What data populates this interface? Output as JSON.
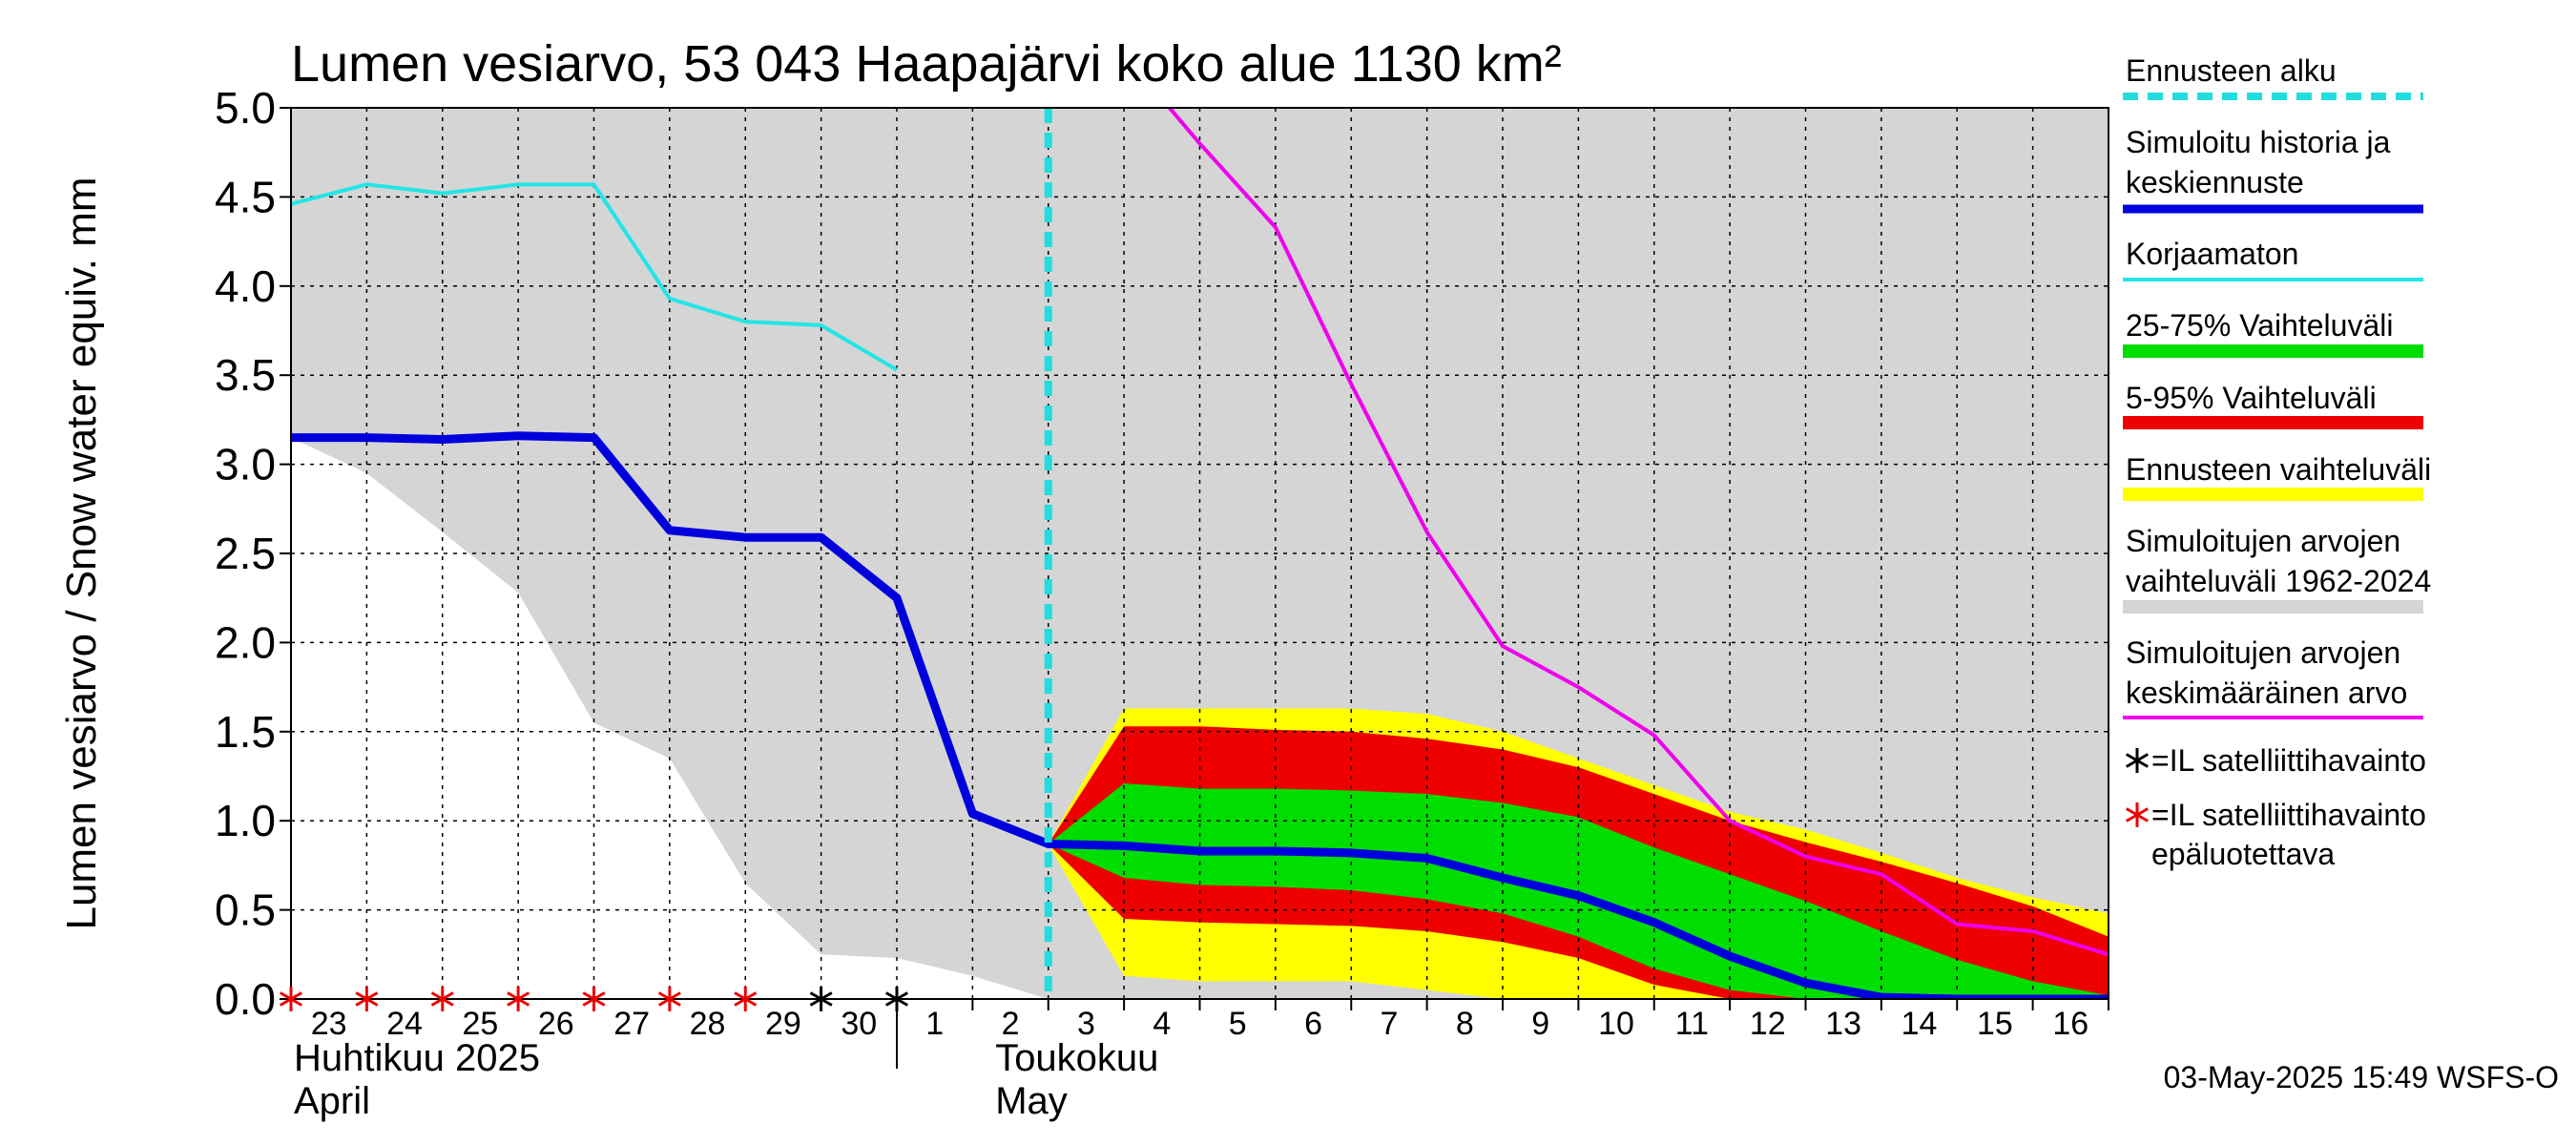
{
  "chart_data": {
    "type": "line",
    "title": "Lumen vesiarvo, 53 043 Haapajärvi koko alue 1130 km²",
    "ylabel": "Lumen vesiarvo / Snow water equiv.    mm",
    "ylim": [
      0,
      5
    ],
    "yticks": [
      "0.0",
      "0.5",
      "1.0",
      "1.5",
      "2.0",
      "2.5",
      "3.0",
      "3.5",
      "4.0",
      "4.5",
      "5.0"
    ],
    "xlim": [
      0,
      24
    ],
    "xtick_labels": [
      "23",
      "24",
      "25",
      "26",
      "27",
      "28",
      "29",
      "30",
      "1",
      "2",
      "3",
      "4",
      "5",
      "6",
      "7",
      "8",
      "9",
      "10",
      "11",
      "12",
      "13",
      "14",
      "15",
      "16"
    ],
    "month_labels": [
      {
        "line1": "Huhtikuu  2025",
        "line2": "April"
      },
      {
        "line1": "Toukokuu",
        "line2": "May"
      }
    ],
    "forecast_start_x": 10,
    "grid": true,
    "legend_position": "right",
    "footer": "03-May-2025 15:49 WSFS-O",
    "colors": {
      "forecast_start": "#22DDDD",
      "simulated": "#0000DD",
      "uncorrected": "#22E5E5",
      "p25_75": "#00DD00",
      "p5_95": "#EE0000",
      "forecast_range": "#FFFF00",
      "hist_range": "#D5D5D5",
      "hist_mean": "#EE00EE"
    },
    "legend": [
      {
        "lines": [
          "Ennusteen alku"
        ],
        "key": "forecast_start",
        "style": "dash"
      },
      {
        "lines": [
          "Simuloitu historia ja",
          "keskiennuste"
        ],
        "key": "simulated",
        "style": "thick"
      },
      {
        "lines": [
          "Korjaamaton"
        ],
        "key": "uncorrected",
        "style": "thin"
      },
      {
        "lines": [
          "25-75% Vaihteluväli"
        ],
        "key": "p25_75",
        "style": "band"
      },
      {
        "lines": [
          "5-95% Vaihteluväli"
        ],
        "key": "p5_95",
        "style": "band"
      },
      {
        "lines": [
          "Ennusteen vaihteluväli"
        ],
        "key": "forecast_range",
        "style": "band"
      },
      {
        "lines": [
          "Simuloitujen arvojen",
          "vaihteluväli 1962-2024"
        ],
        "key": "hist_range",
        "style": "band"
      },
      {
        "lines": [
          "Simuloitujen arvojen",
          "keskimääräinen arvo"
        ],
        "key": "hist_mean",
        "style": "thin"
      },
      {
        "lines": [
          "=IL satelliittihavainto"
        ],
        "key": "sat_black",
        "style": "star",
        "color": "#000000"
      },
      {
        "lines": [
          "=IL satelliittihavainto",
          "epäluotettava"
        ],
        "key": "sat_red",
        "style": "star",
        "color": "#EE0000"
      }
    ],
    "series": {
      "hist_range_upper": {
        "x": [
          0,
          24
        ],
        "y": [
          5.0,
          5.0
        ]
      },
      "hist_range_lower": {
        "x": [
          0,
          1,
          2,
          3,
          4,
          5,
          6,
          7,
          8,
          9,
          10,
          11,
          24
        ],
        "y": [
          3.15,
          2.95,
          2.62,
          2.28,
          1.55,
          1.35,
          0.65,
          0.25,
          0.23,
          0.13,
          0.0,
          0.0,
          0.0
        ]
      },
      "forecast_range": {
        "x": [
          10,
          11,
          12,
          13,
          14,
          15,
          16,
          17,
          18,
          19,
          20,
          21,
          22,
          23,
          24
        ],
        "upper": [
          0.87,
          1.63,
          1.63,
          1.63,
          1.63,
          1.6,
          1.5,
          1.35,
          1.2,
          1.05,
          0.95,
          0.82,
          0.68,
          0.57,
          0.48
        ],
        "lower": [
          0.87,
          0.13,
          0.1,
          0.1,
          0.1,
          0.05,
          0.0,
          0.0,
          0.0,
          0.0,
          0.0,
          0.0,
          0.0,
          0.0,
          0.0
        ]
      },
      "p5_95": {
        "x": [
          10,
          11,
          12,
          13,
          14,
          15,
          16,
          17,
          18,
          19,
          20,
          21,
          22,
          23,
          24
        ],
        "upper": [
          0.87,
          1.53,
          1.53,
          1.51,
          1.5,
          1.46,
          1.4,
          1.3,
          1.15,
          1.0,
          0.88,
          0.77,
          0.65,
          0.52,
          0.35
        ],
        "lower": [
          0.87,
          0.45,
          0.43,
          0.42,
          0.41,
          0.38,
          0.32,
          0.23,
          0.08,
          0.0,
          0.0,
          0.0,
          0.0,
          0.0,
          0.0
        ]
      },
      "p25_75": {
        "x": [
          10,
          11,
          12,
          13,
          14,
          15,
          16,
          17,
          18,
          19,
          20,
          21,
          22,
          23,
          24
        ],
        "upper": [
          0.87,
          1.21,
          1.18,
          1.18,
          1.17,
          1.15,
          1.1,
          1.02,
          0.85,
          0.7,
          0.55,
          0.38,
          0.22,
          0.1,
          0.02
        ],
        "lower": [
          0.87,
          0.68,
          0.64,
          0.63,
          0.61,
          0.56,
          0.48,
          0.35,
          0.17,
          0.05,
          0.0,
          0.0,
          0.0,
          0.0,
          0.0
        ]
      },
      "uncorrected": {
        "x": [
          0,
          1,
          2,
          3,
          4,
          5,
          6,
          7,
          8
        ],
        "y": [
          4.46,
          4.57,
          4.52,
          4.57,
          4.57,
          3.93,
          3.8,
          3.78,
          3.53
        ]
      },
      "hist_mean": {
        "x": [
          11.6,
          12,
          13,
          14,
          15,
          16,
          17,
          18,
          19,
          20,
          21,
          22,
          23,
          24
        ],
        "y": [
          5.0,
          4.8,
          4.33,
          3.45,
          2.62,
          1.98,
          1.75,
          1.48,
          1.0,
          0.8,
          0.7,
          0.42,
          0.38,
          0.25
        ]
      },
      "simulated": {
        "x": [
          0,
          1,
          2,
          3,
          4,
          5,
          6,
          7,
          8,
          9,
          10,
          11,
          12,
          13,
          14,
          15,
          16,
          17,
          18,
          19,
          20,
          21,
          22,
          23,
          24
        ],
        "y": [
          3.15,
          3.15,
          3.14,
          3.16,
          3.15,
          2.63,
          2.59,
          2.59,
          2.25,
          1.04,
          0.87,
          0.86,
          0.83,
          0.83,
          0.82,
          0.79,
          0.68,
          0.58,
          0.43,
          0.24,
          0.09,
          0.01,
          0.0,
          0.0,
          0.0
        ]
      },
      "sat_red": {
        "x": [
          0,
          1,
          2,
          3,
          4,
          5,
          6
        ],
        "y": [
          0,
          0,
          0,
          0,
          0,
          0,
          0
        ]
      },
      "sat_black": {
        "x": [
          7,
          8
        ],
        "y": [
          0,
          0
        ]
      }
    }
  }
}
